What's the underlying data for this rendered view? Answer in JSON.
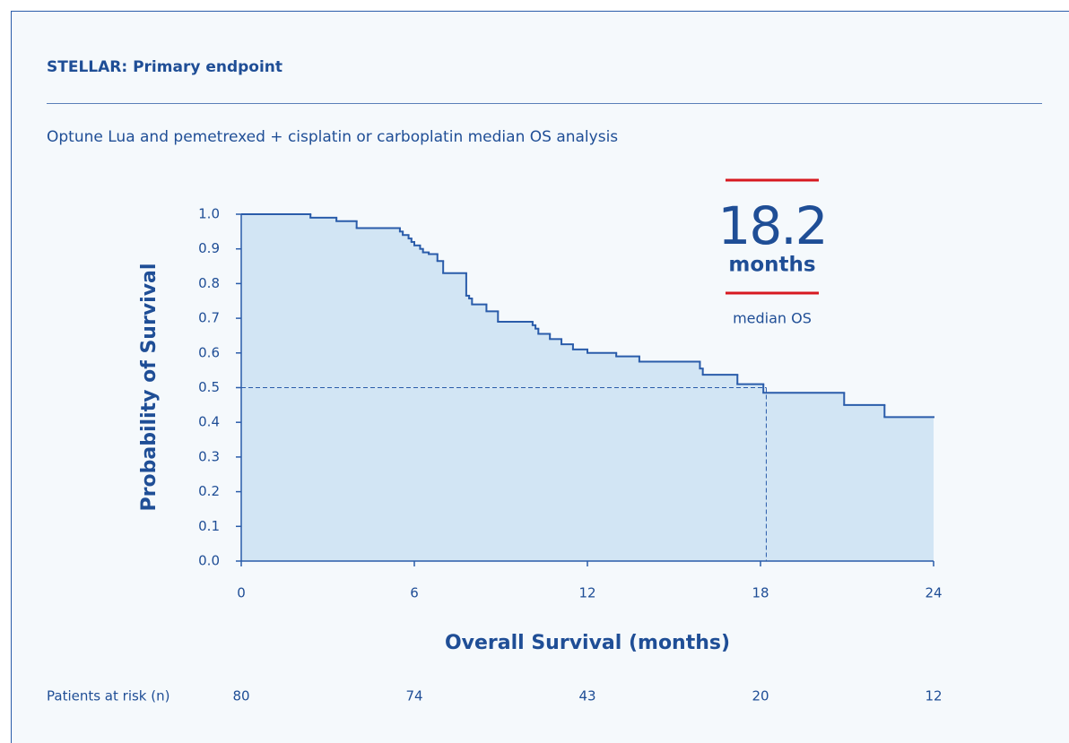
{
  "chart_data": {
    "type": "step",
    "title": "STELLAR: Primary endpoint",
    "subtitle": "Optune Lua and pemetrexed + cisplatin or carboplatin median OS analysis",
    "x_label": "Overall Survival (months)",
    "y_label": "Probability of Survival",
    "color": "#2a5caa",
    "fill": "#d2e5f4",
    "x": [
      0,
      2.4,
      3.3,
      4.0,
      5.5,
      5.6,
      5.8,
      5.9,
      6.0,
      6.2,
      6.3,
      6.5,
      6.8,
      7.0,
      7.8,
      7.9,
      8.0,
      8.5,
      8.9,
      10.1,
      10.2,
      10.3,
      10.7,
      11.1,
      11.5,
      12.0,
      13.0,
      13.8,
      15.9,
      16.0,
      17.2,
      18.1,
      20.9,
      22.3
    ],
    "values": [
      1.0,
      0.99,
      0.98,
      0.96,
      0.95,
      0.94,
      0.93,
      0.92,
      0.91,
      0.9,
      0.89,
      0.885,
      0.865,
      0.83,
      0.765,
      0.757,
      0.74,
      0.72,
      0.69,
      0.68,
      0.67,
      0.655,
      0.64,
      0.625,
      0.61,
      0.6,
      0.59,
      0.575,
      0.555,
      0.537,
      0.51,
      0.485,
      0.45,
      0.415
    ],
    "xlim": [
      0,
      24
    ],
    "ylim": [
      0,
      1
    ],
    "xticks": [
      0,
      6,
      12,
      18,
      24
    ],
    "yticks": [
      {
        "value": 0,
        "label": "0.0"
      },
      0.1,
      0.2,
      0.3,
      0.4,
      0.5,
      0.6,
      0.7,
      0.8,
      0.9,
      {
        "value": 1,
        "label": "1.0"
      }
    ],
    "median_probability": 0.5,
    "annotation": {
      "value": 18.2,
      "unit": "months",
      "caption": "median OS",
      "color": "#d71920"
    },
    "at_risk": {
      "label": "Patients at risk (n)",
      "values": [
        80,
        74,
        43,
        20,
        12
      ]
    }
  }
}
